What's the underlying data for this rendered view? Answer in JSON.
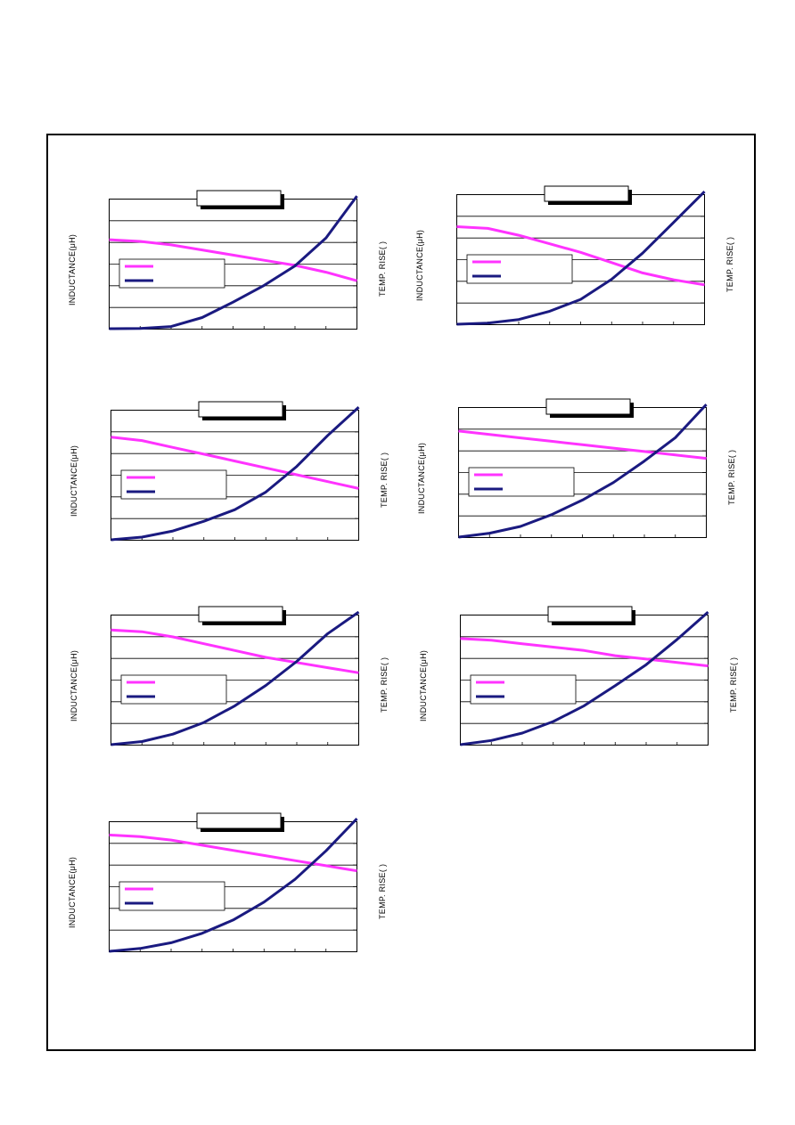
{
  "page": {
    "y_label": "INDUCTANCE(μH)",
    "y2_label": "TEMP. RISE(   )"
  },
  "colors": {
    "inductance": "#ff33ff",
    "temp_rise": "#1a1a80",
    "grid": "#000000"
  },
  "chart_data": [
    {
      "type": "line",
      "title": "",
      "ylabel": "INDUCTANCE(μH)",
      "y2label": "TEMP. RISE(   )",
      "legend": "center-left",
      "grid": true,
      "x": [
        0,
        1,
        2,
        3,
        4,
        5,
        6,
        7,
        8
      ],
      "series": [
        {
          "values": [
            4.6,
            4.55,
            4.45,
            4.3,
            4.15,
            4.0,
            3.85,
            3.65,
            3.4
          ]
        },
        {
          "values": [
            0,
            0.02,
            0.15,
            0.8,
            1.9,
            3.1,
            4.5,
            6.5,
            9.5
          ]
        }
      ]
    },
    {
      "type": "line",
      "title": "",
      "ylabel": "INDUCTANCE(μH)",
      "y2label": "TEMP. RISE(   )",
      "legend": "center-left",
      "grid": true,
      "x": [
        0,
        1,
        2,
        3,
        4,
        5,
        6,
        7,
        8
      ],
      "series": [
        {
          "values": [
            4.85,
            4.8,
            4.6,
            4.35,
            4.1,
            3.8,
            3.5,
            3.3,
            3.15
          ]
        },
        {
          "values": [
            0,
            0.1,
            0.4,
            1.1,
            2.1,
            3.8,
            6.0,
            8.6,
            11.2
          ]
        }
      ]
    },
    {
      "type": "line",
      "title": "",
      "ylabel": "INDUCTANCE(μH)",
      "y2label": "TEMP. RISE(   )",
      "legend": "center-left",
      "grid": true,
      "x": [
        0,
        1,
        2,
        3,
        4,
        5,
        6,
        7,
        8
      ],
      "series": [
        {
          "values": [
            5.0,
            4.9,
            4.7,
            4.5,
            4.3,
            4.1,
            3.9,
            3.7,
            3.5
          ]
        },
        {
          "values": [
            0,
            0.3,
            1.0,
            2.1,
            3.4,
            5.4,
            8.3,
            11.8,
            15.0
          ]
        }
      ]
    },
    {
      "type": "line",
      "title": "",
      "ylabel": "INDUCTANCE(μH)",
      "y2label": "TEMP. RISE(   )",
      "legend": "center-left",
      "grid": true,
      "x": [
        0,
        1,
        2,
        3,
        4,
        5,
        6,
        7,
        8
      ],
      "series": [
        {
          "values": [
            5.1,
            5.0,
            4.9,
            4.8,
            4.7,
            4.6,
            4.5,
            4.4,
            4.3
          ]
        },
        {
          "values": [
            0,
            0.4,
            1.1,
            2.3,
            3.8,
            5.6,
            7.8,
            10.2,
            13.6
          ]
        }
      ]
    },
    {
      "type": "line",
      "title": "",
      "ylabel": "INDUCTANCE(μH)",
      "y2label": "TEMP. RISE(   )",
      "legend": "center-left",
      "grid": true,
      "x": [
        0,
        1,
        2,
        3,
        4,
        5,
        6,
        7,
        8
      ],
      "series": [
        {
          "values": [
            5.35,
            5.3,
            5.15,
            4.95,
            4.75,
            4.55,
            4.4,
            4.25,
            4.1
          ]
        },
        {
          "values": [
            0,
            0.5,
            1.7,
            3.6,
            6.3,
            9.6,
            13.5,
            18.0,
            21.5
          ]
        }
      ]
    },
    {
      "type": "line",
      "title": "",
      "ylabel": "INDUCTANCE(μH)",
      "y2label": "TEMP. RISE(   )",
      "legend": "center-left",
      "grid": true,
      "x": [
        0,
        1,
        2,
        3,
        4,
        5,
        6,
        7,
        8
      ],
      "series": [
        {
          "values": [
            5.1,
            5.05,
            4.95,
            4.85,
            4.75,
            4.6,
            4.5,
            4.4,
            4.3
          ]
        },
        {
          "values": [
            0,
            0.4,
            1.1,
            2.2,
            3.7,
            5.6,
            7.6,
            10.0,
            12.6
          ]
        }
      ]
    },
    {
      "type": "line",
      "title": "",
      "ylabel": "INDUCTANCE(μH)",
      "y2label": "TEMP. RISE(   )",
      "legend": "center-left",
      "grid": true,
      "x": [
        0,
        1,
        2,
        3,
        4,
        5,
        6,
        7,
        8
      ],
      "series": [
        {
          "values": [
            5.4,
            5.35,
            5.25,
            5.1,
            4.95,
            4.8,
            4.65,
            4.5,
            4.35
          ]
        },
        {
          "values": [
            0,
            0.3,
            0.9,
            1.9,
            3.3,
            5.2,
            7.6,
            10.6,
            14.0
          ]
        }
      ]
    }
  ]
}
